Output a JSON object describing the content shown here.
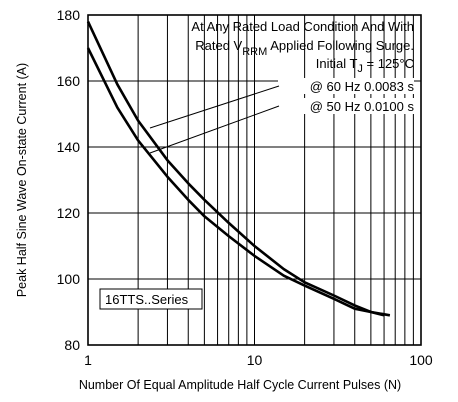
{
  "chart_data": {
    "type": "line",
    "title": "",
    "xlabel": "Number Of Equal Amplitude Half Cycle Current Pulses (N)",
    "ylabel": "Peak Half Sine Wave On-state Current (A)",
    "x_scale": "log",
    "xlim": [
      1,
      100
    ],
    "ylim": [
      80,
      180
    ],
    "xticks": [
      1,
      10,
      100
    ],
    "xtick_labels": [
      "1",
      "10",
      "100"
    ],
    "yticks": [
      80,
      100,
      120,
      140,
      160,
      180
    ],
    "ytick_labels": [
      "80",
      "100",
      "120",
      "140",
      "160",
      "180"
    ],
    "grid": true,
    "series": [
      {
        "name": "@ 60 Hz 0.0083 s",
        "x": [
          1,
          1.5,
          2,
          3,
          4,
          5,
          7,
          10,
          15,
          20,
          30,
          40,
          50,
          60
        ],
        "y": [
          178,
          159,
          148,
          136,
          129,
          124,
          117,
          110,
          103,
          99,
          95,
          92,
          90,
          89
        ]
      },
      {
        "name": "@ 50 Hz 0.0100 s",
        "x": [
          1,
          1.5,
          2,
          3,
          4,
          5,
          7,
          10,
          15,
          20,
          30,
          40,
          50,
          65
        ],
        "y": [
          170,
          152,
          142,
          131,
          124,
          119,
          113,
          107,
          101,
          98,
          94,
          91,
          90,
          89
        ]
      }
    ],
    "annotations": {
      "condition_line1": "At Any Rated Load Condition And With",
      "condition_line2_prefix": "Rated V",
      "condition_line2_sub": "RRM",
      "condition_line2_suffix": " Applied Following Surge.",
      "tj_prefix": "Initial T",
      "tj_sub": "J",
      "tj_suffix": " = 125°C",
      "series_label_60": "@ 60 Hz 0.0083 s",
      "series_label_50": "@ 50 Hz 0.0100 s",
      "device_label": "16TTS..Series"
    }
  }
}
